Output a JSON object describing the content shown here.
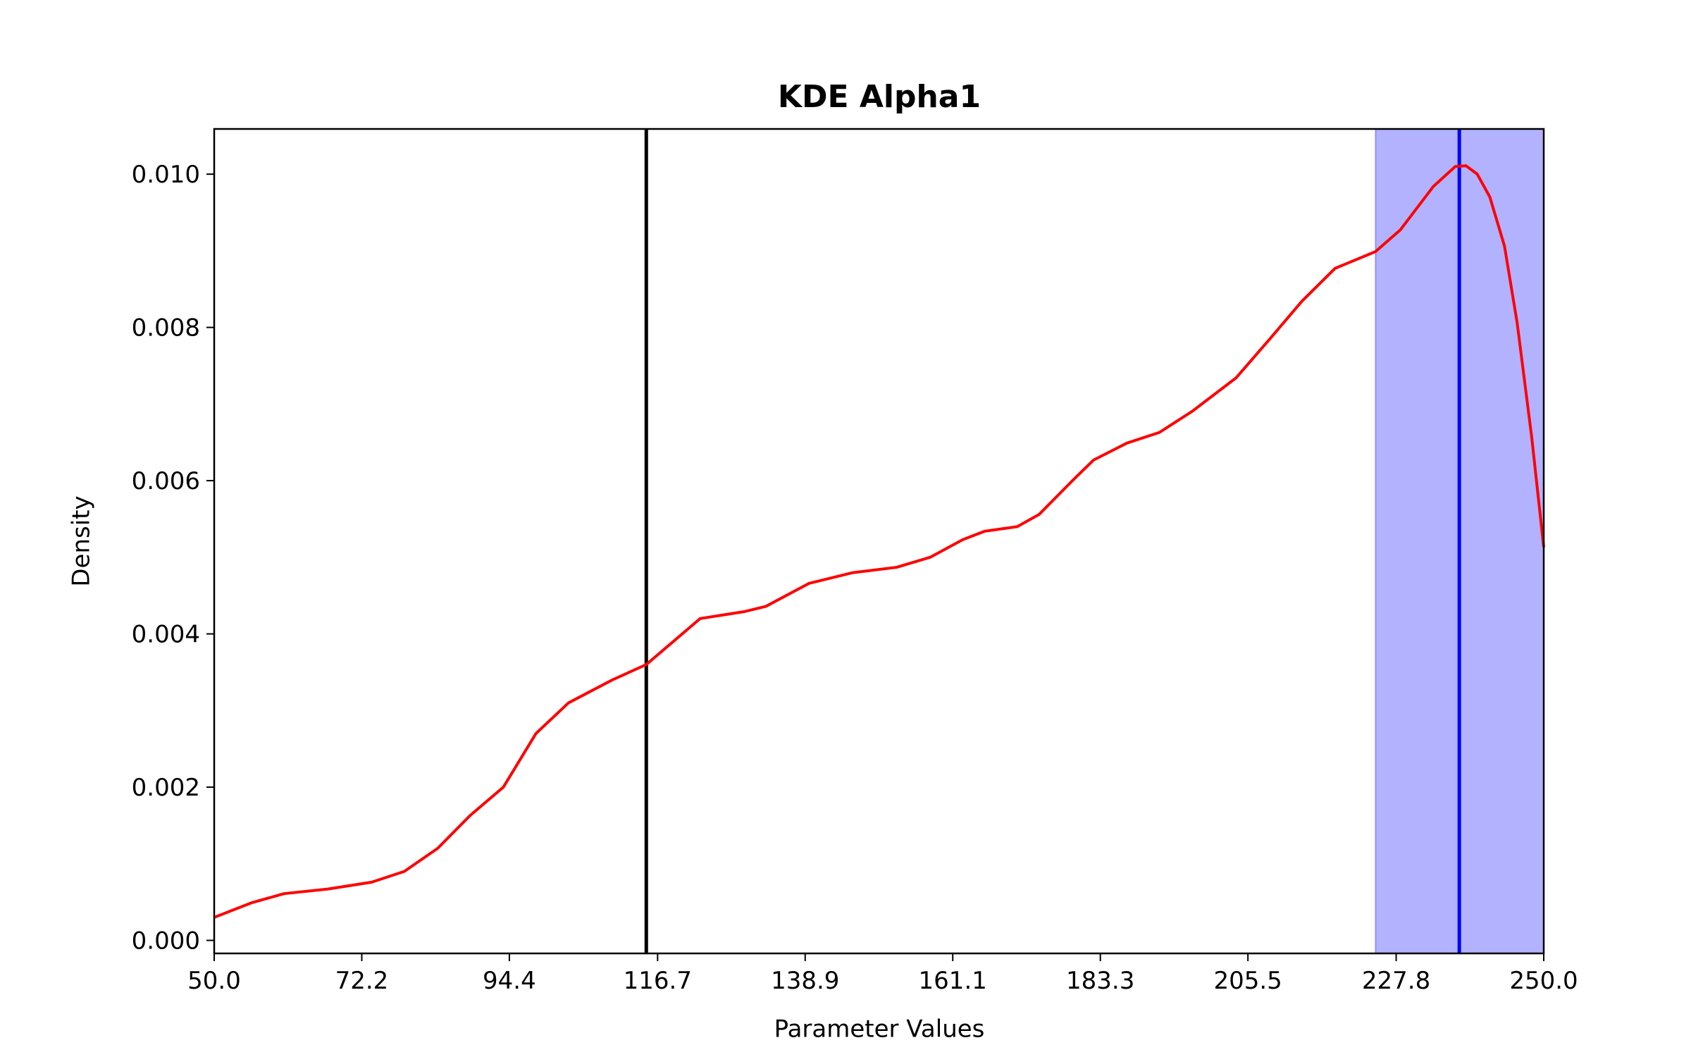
{
  "chart_data": {
    "type": "line",
    "title": "KDE Alpha1",
    "x_label": "Parameter Values",
    "y_label": "Density",
    "x": [
      50,
      55.6,
      60.5,
      67.1,
      73.7,
      78.6,
      83.6,
      88.5,
      93.5,
      98.4,
      103.3,
      109.9,
      115,
      123.1,
      129.7,
      133,
      139.5,
      146.1,
      152.7,
      157.7,
      162.6,
      165.9,
      170.8,
      174.1,
      179.1,
      182.3,
      187.3,
      192.2,
      197.2,
      203.7,
      208.7,
      213.6,
      218.6,
      224.7,
      228.4,
      233.4,
      236.7,
      238.3,
      240,
      241.9,
      244.1,
      246,
      248.2,
      250
    ],
    "values": [
      0.0003,
      0.00049,
      0.00061,
      0.00067,
      0.00076,
      0.0009,
      0.0012,
      0.00163,
      0.002,
      0.0027,
      0.0031,
      0.0034,
      0.0036,
      0.0042,
      0.00429,
      0.00436,
      0.00466,
      0.0048,
      0.00487,
      0.005,
      0.00523,
      0.00534,
      0.0054,
      0.00556,
      0.006,
      0.00627,
      0.00649,
      0.00663,
      0.00691,
      0.00734,
      0.00784,
      0.00834,
      0.00877,
      0.00899,
      0.00927,
      0.00984,
      0.0101,
      0.01011,
      0.01,
      0.0097,
      0.00906,
      0.00806,
      0.00656,
      0.00513
    ],
    "color": "#ff0000",
    "vlines": [
      {
        "x": 115,
        "color": "#000000"
      },
      {
        "x": 237.3,
        "color": "#0000ff"
      }
    ],
    "span": {
      "x": [
        224.7,
        250
      ],
      "color": "#0000ff"
    },
    "xlim": [
      50,
      250
    ],
    "ylim": [
      -0.00017,
      0.01059
    ],
    "xticks": [
      {
        "value": 50,
        "label": "50.0"
      },
      72.2,
      94.4,
      116.7,
      138.9,
      161.1,
      183.3,
      205.5,
      227.8,
      {
        "value": 250,
        "label": "250.0"
      }
    ],
    "yticks": [
      {
        "value": 0,
        "label": "0.000"
      },
      {
        "value": 0.002,
        "label": "0.002"
      },
      {
        "value": 0.004,
        "label": "0.004"
      },
      {
        "value": 0.006,
        "label": "0.006"
      },
      {
        "value": 0.008,
        "label": "0.008"
      },
      {
        "value": 0.01,
        "label": "0.010"
      }
    ],
    "grid": false
  }
}
